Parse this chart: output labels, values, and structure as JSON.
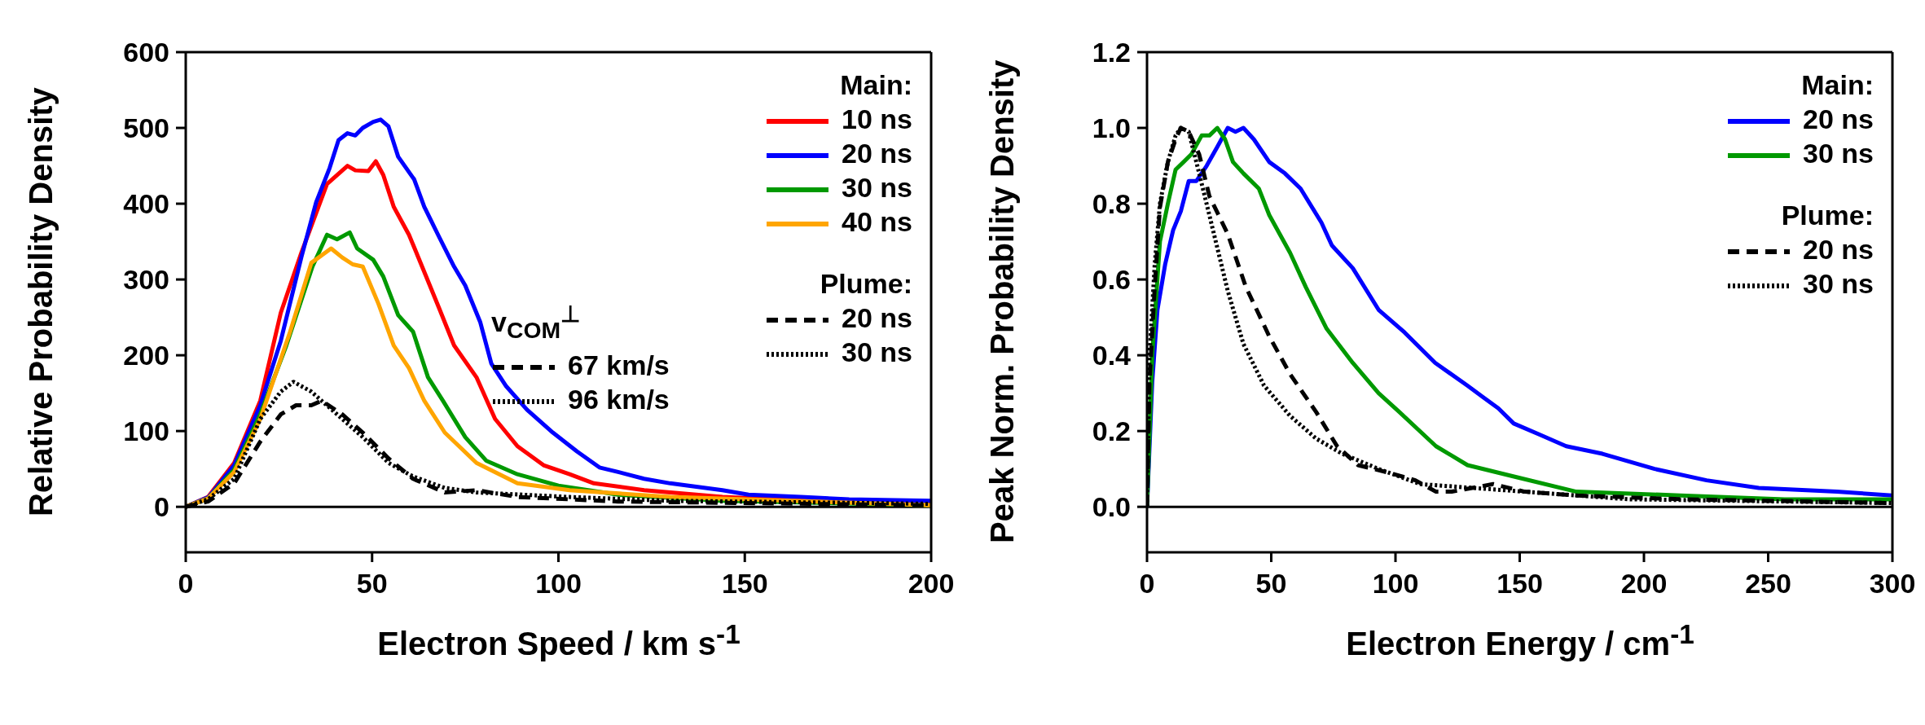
{
  "chart_data": [
    {
      "type": "line",
      "xlabel": "Electron Speed / km s$^{-1}$",
      "ylabel": "Relative Probability Density",
      "xlim": [
        0,
        200
      ],
      "xticks": [
        0,
        50,
        100,
        150,
        200
      ],
      "ylim": [
        -60,
        600
      ],
      "yticks": [
        0,
        100,
        200,
        300,
        400,
        500,
        600
      ],
      "legend": "top right",
      "marker": "none",
      "annotations": [
        "Main:",
        "Plume:",
        "v$_{COM}$$^{⊥}$",
        "67 km/s",
        "96 km/s"
      ],
      "ref_lines": [
        {
          "axis": "y",
          "value": 0,
          "color": "#000000"
        }
      ],
      "series": [
        {
          "name": "10 ns",
          "color": "#ff0000",
          "line_style": "solid",
          "x": [
            0,
            6,
            13,
            20,
            25.5,
            31,
            37.9,
            43.4,
            45.5,
            49,
            51,
            53,
            55.8,
            59.9,
            64,
            68,
            72,
            78,
            83,
            89,
            96,
            103,
            109.5,
            123,
            144,
            171,
            200
          ],
          "values": [
            0,
            13,
            58,
            140,
            256,
            335,
            426,
            450,
            444,
            443,
            456,
            438,
            396,
            359,
            310,
            262,
            213,
            171,
            116,
            80,
            55,
            43,
            31,
            22,
            13,
            7,
            4
          ]
        },
        {
          "name": "20 ns",
          "color": "#0000ff",
          "line_style": "solid",
          "x": [
            0,
            6.2,
            13,
            20,
            25.5,
            31,
            35,
            38.6,
            41,
            43.4,
            45.5,
            47.5,
            50.3,
            52.3,
            54.4,
            57,
            61.3,
            64,
            68,
            72,
            75,
            79,
            82,
            86,
            91.6,
            98.5,
            105,
            111,
            116,
            123,
            130,
            144,
            151,
            165,
            178,
            200
          ],
          "values": [
            0,
            13,
            55,
            134,
            219,
            329,
            402,
            447,
            484,
            493,
            490,
            500,
            508,
            511,
            502,
            462,
            432,
            396,
            356,
            317,
            292,
            244,
            189,
            159,
            128,
            98,
            73,
            52,
            46,
            37,
            31,
            22,
            16,
            13,
            10,
            8
          ]
        },
        {
          "name": "30 ns",
          "color": "#009900",
          "line_style": "solid",
          "x": [
            0,
            6,
            13,
            20,
            27,
            34,
            37.9,
            40.6,
            44,
            46,
            50.3,
            53,
            57,
            61,
            65,
            69,
            75,
            80.6,
            89,
            100,
            116,
            144,
            200
          ],
          "values": [
            0,
            11,
            49,
            122,
            213,
            317,
            359,
            353,
            362,
            341,
            326,
            304,
            253,
            231,
            171,
            140,
            92,
            61,
            43,
            28,
            16,
            8,
            2
          ]
        },
        {
          "name": "40 ns",
          "color": "#ffa500",
          "line_style": "solid",
          "x": [
            0,
            6,
            13,
            20,
            28,
            33.7,
            39,
            42,
            44.8,
            47.5,
            51.7,
            55.8,
            59.9,
            64,
            69.5,
            78,
            89,
            103,
            130,
            200
          ],
          "values": [
            0,
            11,
            46,
            116,
            231,
            322,
            341,
            329,
            320,
            317,
            268,
            213,
            183,
            140,
            98,
            58,
            31,
            22,
            13,
            2
          ]
        },
        {
          "name": "20 ns",
          "color": "#000000",
          "line_style": "dashed",
          "x": [
            0,
            6,
            13,
            20,
            25.5,
            29.6,
            33.7,
            36.5,
            42,
            47.5,
            54.4,
            61,
            69.5,
            78,
            89,
            116,
            200
          ],
          "values": [
            0,
            7,
            31,
            86,
            122,
            134,
            134,
            140,
            122,
            98,
            64,
            37,
            19,
            22,
            13,
            7,
            2
          ]
        },
        {
          "name": "30 ns",
          "color": "#000000",
          "line_style": "dotted",
          "x": [
            0,
            6,
            13,
            20,
            25.5,
            28.9,
            33.7,
            40.6,
            47.5,
            54.4,
            61,
            69.5,
            78,
            103,
            130,
            200
          ],
          "values": [
            0,
            10,
            37,
            116,
            152,
            165,
            152,
            122,
            92,
            58,
            40,
            25,
            19,
            13,
            8,
            4
          ]
        }
      ]
    },
    {
      "type": "line",
      "xlabel": "Electron Energy / cm$^{-1}$",
      "ylabel": "Peak Norm. Probability Density",
      "xlim": [
        0,
        300
      ],
      "xticks": [
        0,
        50,
        100,
        150,
        200,
        250,
        300
      ],
      "ylim": [
        -0.12,
        1.2
      ],
      "yticks": [
        {
          "value": 0,
          "label": "0.0"
        },
        {
          "value": 0.2,
          "label": "0.2"
        },
        {
          "value": 0.4,
          "label": "0.4"
        },
        {
          "value": 0.6,
          "label": "0.6"
        },
        {
          "value": 0.8,
          "label": "0.8"
        },
        {
          "value": 1,
          "label": "1.0"
        },
        {
          "value": 1.2,
          "label": "1.2"
        }
      ],
      "legend": "top right",
      "marker": "none",
      "annotations": [
        "Main:",
        "Plume:"
      ],
      "ref_lines": [
        {
          "axis": "y",
          "value": 0,
          "color": "#000000"
        }
      ],
      "series": [
        {
          "name": "20 ns",
          "color": "#0000ff",
          "line_style": "solid",
          "x": [
            0,
            2.1,
            4.2,
            7.3,
            10.5,
            13.6,
            16.8,
            19.9,
            24,
            28.3,
            32.5,
            35.6,
            38.8,
            43,
            49.2,
            55.5,
            61.8,
            70.2,
            74.4,
            82.8,
            93.2,
            103.7,
            116,
            128.9,
            135.1,
            141.4,
            147.6,
            158.2,
            168.7,
            183.3,
            204.3,
            225.2,
            246.2,
            277.6,
            300
          ],
          "values": [
            0,
            0.33,
            0.52,
            0.64,
            0.73,
            0.78,
            0.86,
            0.86,
            0.9,
            0.95,
            1.0,
            0.99,
            1.0,
            0.97,
            0.91,
            0.88,
            0.84,
            0.75,
            0.69,
            0.63,
            0.52,
            0.46,
            0.38,
            0.32,
            0.29,
            0.26,
            0.22,
            0.19,
            0.16,
            0.14,
            0.1,
            0.07,
            0.05,
            0.04,
            0.03
          ]
        },
        {
          "name": "30 ns",
          "color": "#009900",
          "line_style": "solid",
          "x": [
            0,
            2.1,
            5.2,
            8.4,
            11.5,
            14.7,
            17.8,
            22,
            25.1,
            28.3,
            31.4,
            34.6,
            38.8,
            45,
            49.2,
            57.6,
            63.9,
            72.3,
            82.8,
            93.2,
            101.6,
            116.3,
            129,
            147.7,
            172.8,
            214.7,
            256.6,
            300
          ],
          "values": [
            0,
            0.4,
            0.7,
            0.8,
            0.89,
            0.91,
            0.93,
            0.98,
            0.98,
            1.0,
            0.97,
            0.91,
            0.88,
            0.84,
            0.77,
            0.67,
            0.58,
            0.47,
            0.38,
            0.3,
            0.25,
            0.16,
            0.11,
            0.08,
            0.04,
            0.03,
            0.02,
            0.02
          ]
        },
        {
          "name": "20 ns",
          "color": "#000000",
          "line_style": "dashed",
          "x": [
            0,
            1,
            3.1,
            5.2,
            8.4,
            11.5,
            13.6,
            16.8,
            21,
            25.1,
            32.5,
            39.8,
            49.2,
            57.6,
            68.1,
            76.5,
            84.9,
            97.4,
            108,
            116.3,
            122.6,
            139.3,
            152,
            172.8,
            214.7,
            300
          ],
          "values": [
            0,
            0.33,
            0.58,
            0.79,
            0.91,
            0.97,
            1.0,
            0.99,
            0.93,
            0.82,
            0.72,
            0.58,
            0.45,
            0.35,
            0.25,
            0.16,
            0.11,
            0.09,
            0.07,
            0.04,
            0.04,
            0.06,
            0.04,
            0.03,
            0.02,
            0.01
          ]
        },
        {
          "name": "30 ns",
          "color": "#000000",
          "line_style": "dotted",
          "x": [
            0,
            1,
            3.1,
            5.2,
            8.4,
            11.5,
            13.6,
            16.8,
            21,
            26.2,
            32.5,
            38.8,
            47.1,
            57.6,
            68.1,
            78.6,
            93.2,
            110,
            131,
            152,
            193.8,
            300
          ],
          "values": [
            0,
            0.4,
            0.64,
            0.8,
            0.91,
            0.98,
            1.0,
            0.99,
            0.88,
            0.74,
            0.57,
            0.43,
            0.32,
            0.24,
            0.18,
            0.14,
            0.1,
            0.06,
            0.05,
            0.04,
            0.02,
            0.01
          ]
        }
      ]
    }
  ]
}
